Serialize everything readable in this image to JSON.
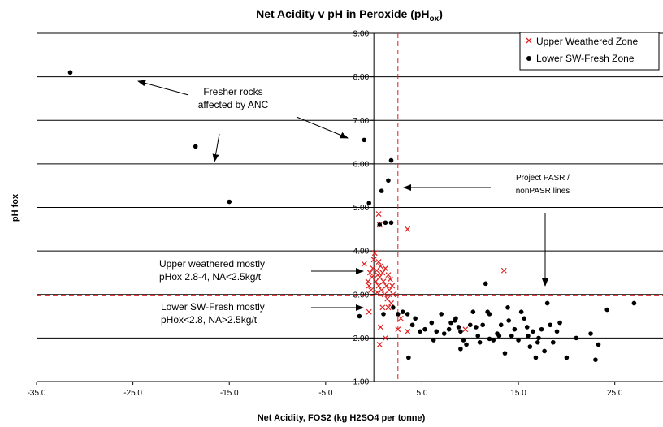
{
  "chart_data": {
    "type": "scatter",
    "title": "Net Acidity v pH in Peroxide (pH",
    "title_subscript": "ox",
    "title_suffix": ")",
    "xlabel": "Net Acidity, FOS2 (kg H2SO4 per tonne)",
    "ylabel": "pH fox",
    "xlim": [
      -35,
      30
    ],
    "ylim": [
      1,
      9
    ],
    "x_ticks": [
      -35.0,
      -25.0,
      -15.0,
      -5.0,
      5.0,
      15.0,
      25.0
    ],
    "x_tick_labels": [
      "-35.0",
      "-25.0",
      "-15.0",
      "-5.0",
      "5.0",
      "15.0",
      "25.0"
    ],
    "y_ticks": [
      1,
      2,
      3,
      4,
      5,
      6,
      7,
      8,
      9
    ],
    "y_tick_labels": [
      "1.00",
      "2.00",
      "3.00",
      "4.00",
      "5.00",
      "6.00",
      "7.00",
      "8.00",
      "9.00"
    ],
    "grid": "horizontal",
    "legend_position": "top-right",
    "reference_lines": {
      "vertical_x": 2.5,
      "horizontal_y": 2.97,
      "color": "#e02020"
    },
    "series": [
      {
        "name": "Upper Weathered Zone",
        "marker": "x",
        "color": "#e02020",
        "points": [
          [
            -1.0,
            3.7
          ],
          [
            -0.6,
            3.3
          ],
          [
            -0.5,
            3.2
          ],
          [
            -0.4,
            3.5
          ],
          [
            -0.3,
            3.1
          ],
          [
            -0.2,
            3.4
          ],
          [
            -0.1,
            3.6
          ],
          [
            0.0,
            3.8
          ],
          [
            0.1,
            3.95
          ],
          [
            0.2,
            3.3
          ],
          [
            0.3,
            3.55
          ],
          [
            0.35,
            3.05
          ],
          [
            0.4,
            3.45
          ],
          [
            0.5,
            3.75
          ],
          [
            0.5,
            3.2
          ],
          [
            0.6,
            3.4
          ],
          [
            0.7,
            3.65
          ],
          [
            0.8,
            3.1
          ],
          [
            0.9,
            3.5
          ],
          [
            1.0,
            3.3
          ],
          [
            1.1,
            3.0
          ],
          [
            1.2,
            3.6
          ],
          [
            1.3,
            3.2
          ],
          [
            1.4,
            2.9
          ],
          [
            1.5,
            3.45
          ],
          [
            1.6,
            3.1
          ],
          [
            1.7,
            3.35
          ],
          [
            1.8,
            2.8
          ],
          [
            1.9,
            3.2
          ],
          [
            2.0,
            3.0
          ],
          [
            0.5,
            4.85
          ],
          [
            0.6,
            4.6
          ],
          [
            3.5,
            4.5
          ],
          [
            -0.5,
            2.6
          ],
          [
            0.7,
            2.25
          ],
          [
            0.6,
            1.85
          ],
          [
            1.2,
            2.0
          ],
          [
            2.8,
            2.45
          ],
          [
            2.5,
            2.2
          ],
          [
            3.5,
            2.15
          ],
          [
            9.5,
            2.2
          ],
          [
            13.5,
            3.55
          ],
          [
            0.9,
            2.7
          ],
          [
            1.5,
            2.7
          ]
        ]
      },
      {
        "name": "Lower SW-Fresh Zone",
        "marker": "dot",
        "color": "#000000",
        "points": [
          [
            -31.5,
            8.1
          ],
          [
            -18.5,
            6.4
          ],
          [
            -15.0,
            5.13
          ],
          [
            -1.0,
            6.55
          ],
          [
            -0.5,
            5.1
          ],
          [
            1.8,
            6.08
          ],
          [
            1.5,
            5.62
          ],
          [
            0.8,
            5.38
          ],
          [
            1.2,
            4.65
          ],
          [
            1.8,
            4.65
          ],
          [
            0.6,
            4.6
          ],
          [
            -1.5,
            2.5
          ],
          [
            1.0,
            2.55
          ],
          [
            2.0,
            2.7
          ],
          [
            2.5,
            2.55
          ],
          [
            3.5,
            2.55
          ],
          [
            3.6,
            1.55
          ],
          [
            4.0,
            2.3
          ],
          [
            4.3,
            2.45
          ],
          [
            4.8,
            2.15
          ],
          [
            5.3,
            2.2
          ],
          [
            6.0,
            2.35
          ],
          [
            6.5,
            2.15
          ],
          [
            7.0,
            2.55
          ],
          [
            7.3,
            2.1
          ],
          [
            7.8,
            2.2
          ],
          [
            8.0,
            2.35
          ],
          [
            8.4,
            2.4
          ],
          [
            8.8,
            2.25
          ],
          [
            9.0,
            2.15
          ],
          [
            9.3,
            1.95
          ],
          [
            9.6,
            1.85
          ],
          [
            10.0,
            2.3
          ],
          [
            10.3,
            2.6
          ],
          [
            10.6,
            2.25
          ],
          [
            11.0,
            1.9
          ],
          [
            11.3,
            2.3
          ],
          [
            11.6,
            3.25
          ],
          [
            12.0,
            2.55
          ],
          [
            12.4,
            1.95
          ],
          [
            12.8,
            2.1
          ],
          [
            13.2,
            2.3
          ],
          [
            13.6,
            1.65
          ],
          [
            13.9,
            2.7
          ],
          [
            14.3,
            2.05
          ],
          [
            14.6,
            2.2
          ],
          [
            15.0,
            1.95
          ],
          [
            15.3,
            2.6
          ],
          [
            15.6,
            2.45
          ],
          [
            15.9,
            2.25
          ],
          [
            16.2,
            1.8
          ],
          [
            16.5,
            2.15
          ],
          [
            16.8,
            1.55
          ],
          [
            17.1,
            2.0
          ],
          [
            17.4,
            2.2
          ],
          [
            17.7,
            1.7
          ],
          [
            18.0,
            2.8
          ],
          [
            18.3,
            2.3
          ],
          [
            18.6,
            1.9
          ],
          [
            19.0,
            2.15
          ],
          [
            19.3,
            2.35
          ],
          [
            20.0,
            1.55
          ],
          [
            21.0,
            2.0
          ],
          [
            22.5,
            2.1
          ],
          [
            23.0,
            1.5
          ],
          [
            23.3,
            1.85
          ],
          [
            24.2,
            2.65
          ],
          [
            27.0,
            2.8
          ],
          [
            9.0,
            1.75
          ],
          [
            10.8,
            2.05
          ],
          [
            14.0,
            2.4
          ],
          [
            12.0,
            1.98
          ],
          [
            16.0,
            2.05
          ],
          [
            8.5,
            2.45
          ],
          [
            6.2,
            1.95
          ],
          [
            3.0,
            2.6
          ],
          [
            13.0,
            2.05
          ],
          [
            17.0,
            1.9
          ],
          [
            11.8,
            2.6
          ]
        ]
      }
    ],
    "annotations": [
      {
        "lines": [
          "Fresher rocks",
          "affected by ANC"
        ]
      },
      {
        "lines": [
          "Project PASR /",
          "nonPASR lines"
        ]
      },
      {
        "lines": [
          "Upper weathered mostly",
          "pHox 2.8-4, NA<2.5kg/t"
        ]
      },
      {
        "lines": [
          "Lower SW-Fresh mostly",
          "pHox<2.8, NA>2.5kg/t"
        ]
      }
    ]
  }
}
